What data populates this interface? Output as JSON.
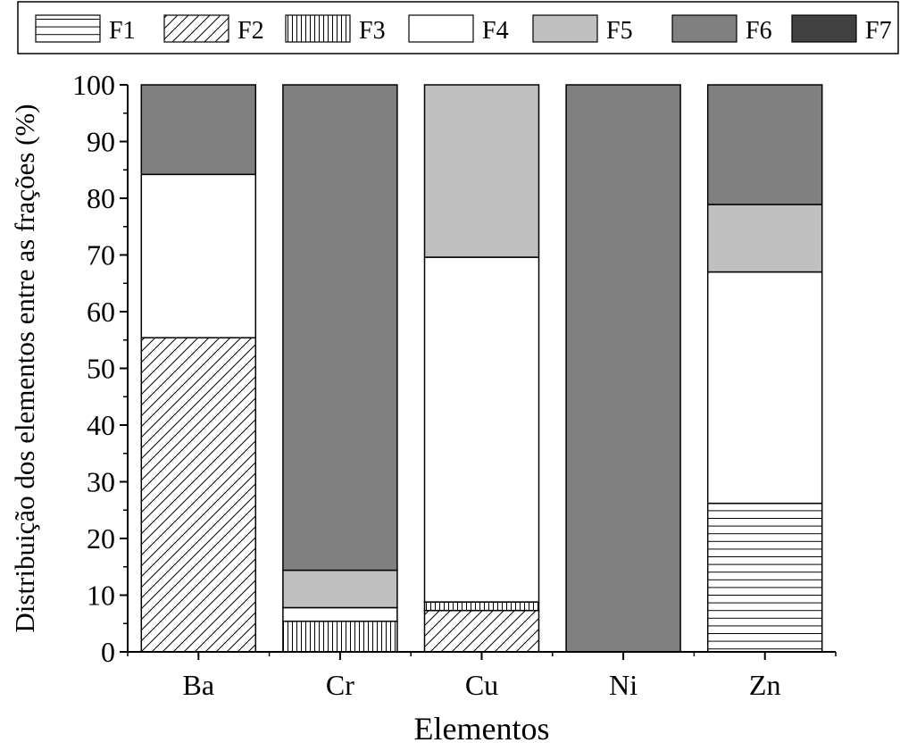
{
  "chart_data": {
    "type": "bar",
    "stacked": true,
    "title": "",
    "xlabel": "Elementos",
    "ylabel": "Distribuição dos elementos entre as frações (%)",
    "ylim": [
      0,
      100
    ],
    "yticks": [
      0,
      10,
      20,
      30,
      40,
      50,
      60,
      70,
      80,
      90,
      100
    ],
    "grid": false,
    "legend_position": "top",
    "categories": [
      "Ba",
      "Cr",
      "Cu",
      "Ni",
      "Zn"
    ],
    "series": [
      {
        "name": "F1",
        "values": [
          0,
          0,
          0,
          0,
          26.2
        ],
        "fill": "hlines",
        "color": "#ffffff"
      },
      {
        "name": "F2",
        "values": [
          55.4,
          0,
          7.3,
          0,
          0
        ],
        "fill": "diagonal",
        "color": "#ffffff"
      },
      {
        "name": "F3",
        "values": [
          0,
          5.4,
          1.5,
          0,
          0
        ],
        "fill": "vlines",
        "color": "#ffffff"
      },
      {
        "name": "F4",
        "values": [
          28.8,
          2.4,
          60.8,
          0,
          40.8
        ],
        "fill": "solid",
        "color": "#ffffff"
      },
      {
        "name": "F5",
        "values": [
          0,
          6.6,
          30.4,
          0,
          11.9
        ],
        "fill": "solid",
        "color": "#c0c0c0"
      },
      {
        "name": "F6",
        "values": [
          15.8,
          85.6,
          0,
          100,
          21.1
        ],
        "fill": "solid",
        "color": "#808080"
      },
      {
        "name": "F7",
        "values": [
          0,
          0,
          0,
          0,
          0
        ],
        "fill": "solid",
        "color": "#404040"
      }
    ]
  }
}
